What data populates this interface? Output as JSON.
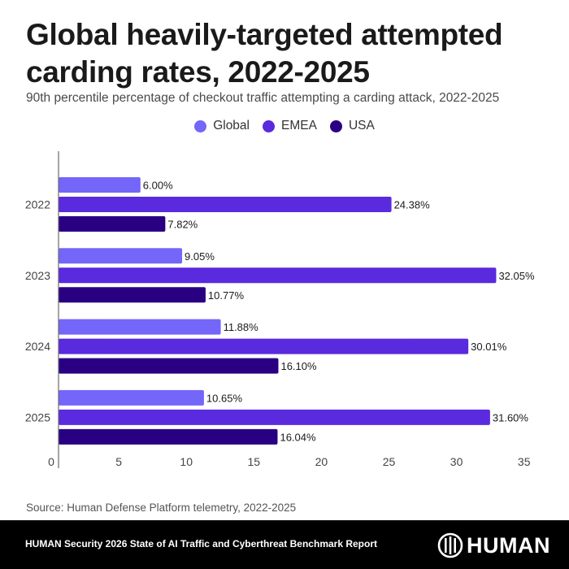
{
  "header": {
    "title": "Global heavily-targeted attempted carding rates, 2022-2025",
    "subtitle": "90th percentile percentage of checkout traffic attempting a carding  attack, 2022-2025"
  },
  "colors": {
    "Global": "#7466f9",
    "EMEA": "#5a2ade",
    "USA": "#2a0083"
  },
  "chart_data": {
    "type": "bar",
    "orientation": "horizontal",
    "title": "Global heavily-targeted attempted carding rates, 2022-2025",
    "subtitle": "90th percentile percentage of checkout traffic attempting a carding  attack, 2022-2025",
    "xlabel": "",
    "ylabel": "",
    "categories": [
      "2022",
      "2023",
      "2024",
      "2025"
    ],
    "series": [
      {
        "name": "Global",
        "values": [
          6.0,
          9.05,
          11.88,
          10.65
        ],
        "labels": [
          "6.00%",
          "9.05%",
          "11.88%",
          "10.65%"
        ]
      },
      {
        "name": "EMEA",
        "values": [
          24.38,
          32.05,
          30.01,
          31.6
        ],
        "labels": [
          "24.38%",
          "32.05%",
          "30.01%",
          "31.60%"
        ]
      },
      {
        "name": "USA",
        "values": [
          7.82,
          10.77,
          16.1,
          16.04
        ],
        "labels": [
          "7.82%",
          "10.77%",
          "16.10%",
          "16.04%"
        ]
      }
    ],
    "xlim": [
      0,
      35
    ],
    "xticks": [
      "0",
      "5",
      "10",
      "15",
      "20",
      "25",
      "30",
      "35"
    ],
    "grid": false,
    "legend": "top-center"
  },
  "source": "Source: Human Defense Platform telemetry, 2022-2025",
  "footer": {
    "report_title": "HUMAN Security 2026 State of AI Traffic and Cyberthreat Benchmark Report",
    "logo_text": "HUMAN"
  }
}
